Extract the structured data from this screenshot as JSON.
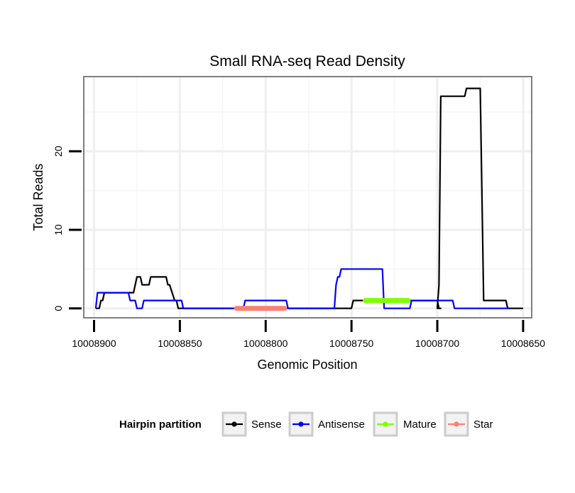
{
  "chart_data": {
    "type": "line",
    "title": "Small RNA-seq Read Density",
    "xlabel": "Genomic Position",
    "ylabel": "Total Reads",
    "x_reversed": true,
    "xlim": [
      10008906,
      10008645
    ],
    "ylim": [
      -1.2,
      29.5
    ],
    "x_ticks": [
      10008900,
      10008850,
      10008800,
      10008750,
      10008700,
      10008650
    ],
    "x_tick_labels": [
      "10008900",
      "10008850",
      "10008800",
      "10008750",
      "10008700",
      "10008650"
    ],
    "y_ticks": [
      0,
      10,
      20
    ],
    "y_tick_labels": [
      "0",
      "10",
      "20"
    ],
    "grid": true,
    "legend_title": "Hairpin partition",
    "legend_position": "bottom",
    "series": [
      {
        "name": "Sense",
        "color": "#000000",
        "points": [
          [
            10008899,
            0
          ],
          [
            10008897,
            0
          ],
          [
            10008896,
            1
          ],
          [
            10008895,
            1
          ],
          [
            10008894,
            2
          ],
          [
            10008877,
            2
          ],
          [
            10008876,
            3
          ],
          [
            10008875,
            4
          ],
          [
            10008873,
            4
          ],
          [
            10008872,
            3
          ],
          [
            10008868,
            3
          ],
          [
            10008867,
            4
          ],
          [
            10008858,
            4
          ],
          [
            10008857,
            3
          ],
          [
            10008856,
            3
          ],
          [
            10008853,
            1
          ],
          [
            10008852,
            1
          ],
          [
            10008851,
            0
          ],
          [
            10008750,
            0
          ],
          [
            10008749,
            1
          ],
          [
            10008700,
            1
          ],
          [
            10008699,
            0
          ],
          [
            10008698,
            0
          ],
          [
            10008700,
            0
          ],
          [
            10008699,
            3
          ],
          [
            10008698,
            27
          ],
          [
            10008684,
            27
          ],
          [
            10008683,
            28
          ],
          [
            10008675,
            28
          ],
          [
            10008673,
            1
          ],
          [
            10008660,
            1
          ],
          [
            10008659,
            0
          ],
          [
            10008650,
            0
          ]
        ]
      },
      {
        "name": "Antisense",
        "color": "#0000ff",
        "points": [
          [
            10008899,
            0
          ],
          [
            10008898,
            2
          ],
          [
            10008896,
            2
          ],
          [
            10008893,
            2
          ],
          [
            10008880,
            2
          ],
          [
            10008879,
            1
          ],
          [
            10008876,
            1
          ],
          [
            10008875,
            0
          ],
          [
            10008872,
            0
          ],
          [
            10008871,
            1
          ],
          [
            10008852,
            1
          ],
          [
            10008849,
            1
          ],
          [
            10008848,
            0
          ],
          [
            10008813,
            0
          ],
          [
            10008812,
            1
          ],
          [
            10008788,
            1
          ],
          [
            10008787,
            0
          ],
          [
            10008760,
            0
          ],
          [
            10008759,
            3
          ],
          [
            10008758,
            4
          ],
          [
            10008757,
            4
          ],
          [
            10008756,
            5
          ],
          [
            10008732,
            5
          ],
          [
            10008731,
            0
          ],
          [
            10008716,
            0
          ],
          [
            10008715,
            1
          ],
          [
            10008691,
            1
          ],
          [
            10008690,
            0
          ],
          [
            10008658,
            0
          ]
        ]
      }
    ],
    "mature": {
      "name": "Mature",
      "color": "#7fff00",
      "start": 10008742,
      "end": 10008717,
      "y": 1
    },
    "star": {
      "name": "Star",
      "color": "#fa8072",
      "start": 10008817,
      "end": 10008789,
      "y": 0
    },
    "legend_items": [
      {
        "label": "Sense",
        "color": "#000000"
      },
      {
        "label": "Antisense",
        "color": "#0000ff"
      },
      {
        "label": "Mature",
        "color": "#7fff00"
      },
      {
        "label": "Star",
        "color": "#fa8072"
      }
    ]
  }
}
